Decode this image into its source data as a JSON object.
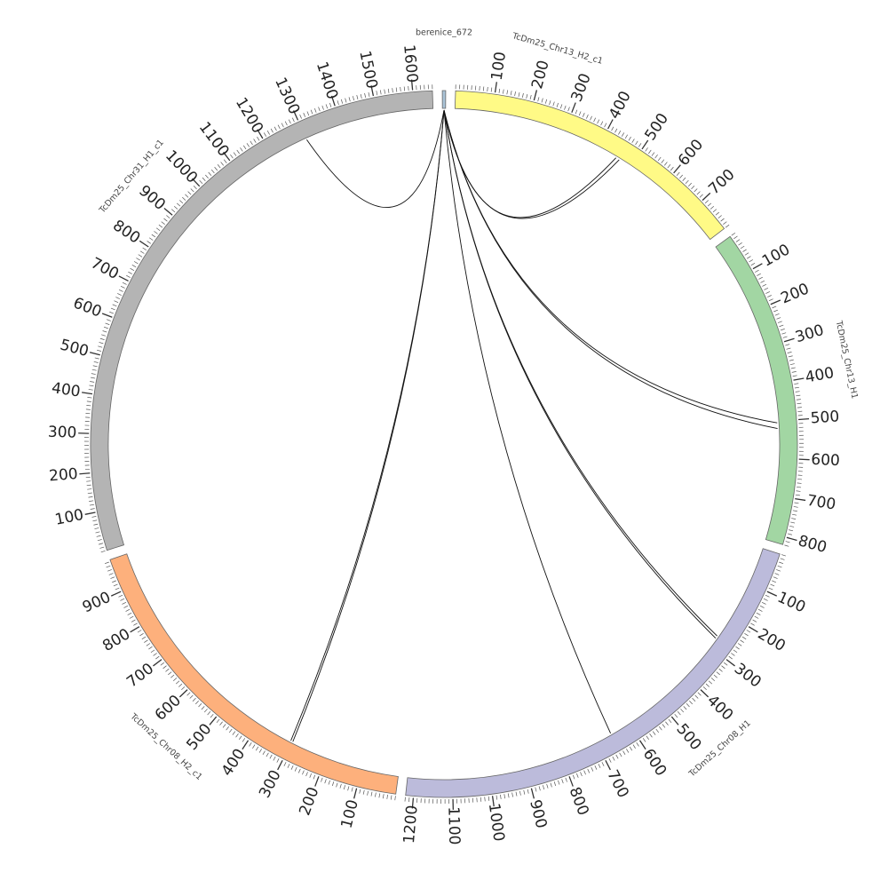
{
  "diagram": {
    "type": "circos",
    "unit_note": "",
    "segments": [
      {
        "name": "berenice_672",
        "length": 8,
        "color": "#aac4d8",
        "label_text": "berenice_672",
        "tick_step": 0,
        "label_step": 0
      },
      {
        "name": "TcDm25_Chr13_H2_c1",
        "length": 790,
        "color": "#fffa86",
        "label_text": "TcDm25_Chr13_H2_c1",
        "tick_step": 10,
        "label_step": 100
      },
      {
        "name": "TcDm25_Chr13_H1",
        "length": 820,
        "color": "#a2d6a3",
        "label_text": "TcDm25_Chr13_H1",
        "tick_step": 10,
        "label_step": 100
      },
      {
        "name": "TcDm25_Chr08_H1",
        "length": 1220,
        "color": "#bcbbdb",
        "label_text": "TcDm25_Chr08_H1",
        "tick_step": 10,
        "label_step": 100
      },
      {
        "name": "TcDm25_Chr08_H2_c1",
        "length": 985,
        "color": "#fdb07c",
        "label_text": "TcDm25_Chr08_H2_c1",
        "tick_step": 10,
        "label_step": 100
      },
      {
        "name": "TcDm25_Chr31_H1_c1",
        "length": 1650,
        "color": "#b4b4b4",
        "label_text": "TcDm25_Chr31_H1_c1",
        "tick_step": 10,
        "label_step": 100
      }
    ],
    "links": [
      {
        "from": "berenice_672",
        "from_pos": 4,
        "to": "TcDm25_Chr13_H2_c1",
        "to_pos": 455
      },
      {
        "from": "berenice_672",
        "from_pos": 4,
        "to": "TcDm25_Chr13_H2_c1",
        "to_pos": 465
      },
      {
        "from": "berenice_672",
        "from_pos": 4,
        "to": "TcDm25_Chr13_H1",
        "to_pos": 505
      },
      {
        "from": "berenice_672",
        "from_pos": 4,
        "to": "TcDm25_Chr13_H1",
        "to_pos": 520
      },
      {
        "from": "berenice_672",
        "from_pos": 4,
        "to": "TcDm25_Chr08_H1",
        "to_pos": 265
      },
      {
        "from": "berenice_672",
        "from_pos": 4,
        "to": "TcDm25_Chr08_H1",
        "to_pos": 272
      },
      {
        "from": "berenice_672",
        "from_pos": 4,
        "to": "TcDm25_Chr08_H1",
        "to_pos": 655
      },
      {
        "from": "berenice_672",
        "from_pos": 4,
        "to": "TcDm25_Chr08_H2_c1",
        "to_pos": 298
      },
      {
        "from": "berenice_672",
        "from_pos": 4,
        "to": "TcDm25_Chr08_H2_c1",
        "to_pos": 304
      },
      {
        "from": "berenice_672",
        "from_pos": 4,
        "to": "TcDm25_Chr31_H1_c1",
        "to_pos": 1300
      }
    ]
  }
}
